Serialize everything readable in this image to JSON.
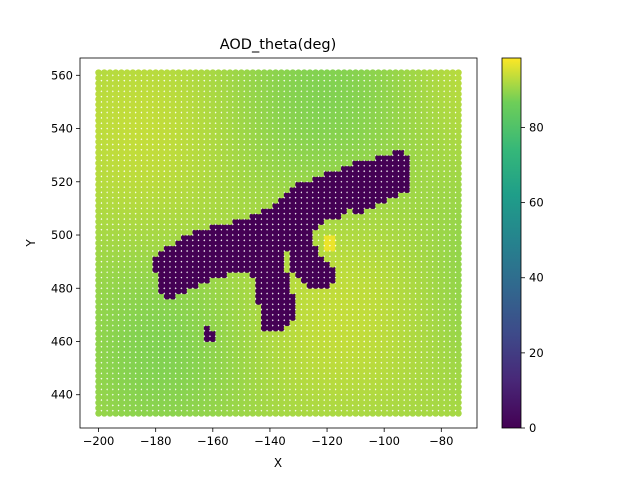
{
  "chart_data": {
    "type": "scatter",
    "title": "AOD_theta(deg)",
    "xlabel": "X",
    "ylabel": "Y",
    "xlim": [
      -206.5,
      -67.5
    ],
    "ylim": [
      427.5,
      566.5
    ],
    "xticks": [
      -200,
      -180,
      -160,
      -140,
      -120,
      -100,
      -80
    ],
    "yticks": [
      440,
      460,
      480,
      500,
      520,
      540,
      560
    ],
    "colorbar": {
      "min": 0,
      "max": 98.5,
      "ticks": [
        0,
        20,
        40,
        60,
        80
      ],
      "colormap": "viridis"
    },
    "grid": {
      "x_range": [
        -200,
        -74
      ],
      "y_range": [
        433,
        561
      ],
      "background_value": 91,
      "bright_patch_value": 97
    },
    "low_region": {
      "value": 0,
      "polygons": [
        [
          [
            -175,
            496
          ],
          [
            -165,
            502
          ],
          [
            -150,
            506
          ],
          [
            -145,
            508
          ],
          [
            -138,
            512
          ],
          [
            -133,
            516
          ],
          [
            -130,
            519
          ],
          [
            -125,
            521
          ],
          [
            -118,
            524
          ],
          [
            -110,
            527
          ],
          [
            -103,
            529
          ],
          [
            -95,
            532
          ],
          [
            -91,
            530
          ],
          [
            -91,
            517
          ],
          [
            -97,
            514
          ],
          [
            -103,
            511
          ],
          [
            -111,
            511
          ],
          [
            -115,
            507
          ],
          [
            -120,
            506
          ],
          [
            -125,
            502
          ],
          [
            -124,
            497
          ],
          [
            -123,
            493
          ],
          [
            -119,
            489
          ],
          [
            -116,
            485
          ],
          [
            -118,
            481
          ],
          [
            -124,
            480
          ],
          [
            -128,
            482
          ],
          [
            -131,
            485
          ],
          [
            -133,
            488
          ],
          [
            -132,
            492
          ],
          [
            -134,
            494
          ],
          [
            -135,
            489
          ],
          [
            -133,
            482
          ],
          [
            -131,
            475
          ],
          [
            -132,
            467
          ],
          [
            -138,
            463
          ],
          [
            -143,
            464
          ],
          [
            -144,
            474
          ],
          [
            -145,
            482
          ],
          [
            -147,
            486
          ],
          [
            -153,
            486
          ],
          [
            -158,
            484
          ],
          [
            -164,
            481
          ],
          [
            -168,
            479
          ],
          [
            -172,
            477
          ],
          [
            -176,
            476
          ],
          [
            -179,
            480
          ],
          [
            -180,
            486
          ],
          [
            -180,
            492
          ]
        ],
        [
          [
            -111,
            518
          ],
          [
            -106,
            514
          ],
          [
            -106,
            508
          ],
          [
            -110,
            507
          ],
          [
            -112,
            511
          ]
        ],
        [
          [
            -162,
            466
          ],
          [
            -159,
            464
          ],
          [
            -158,
            460
          ],
          [
            -161,
            459
          ],
          [
            -163,
            462
          ]
        ]
      ]
    }
  }
}
